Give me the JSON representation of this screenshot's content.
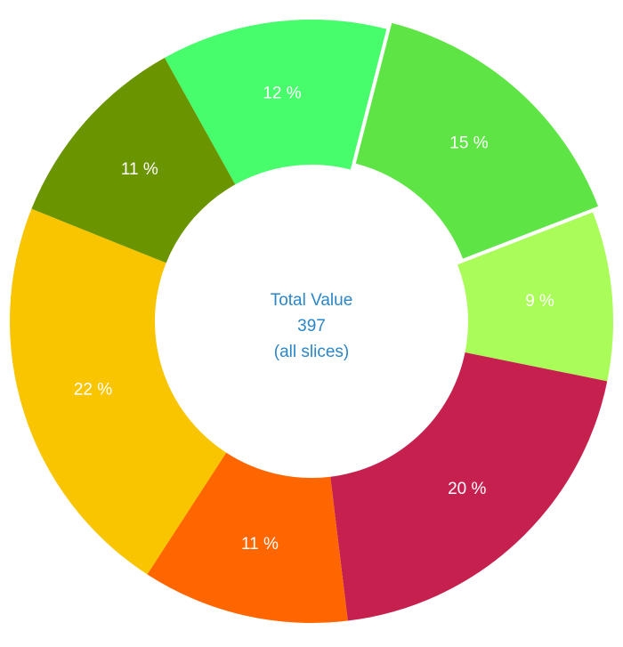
{
  "chart_data": {
    "type": "pie",
    "donut": true,
    "center_text": [
      "Total Value",
      "397",
      "(all slices)"
    ],
    "total": 397,
    "slices": [
      {
        "label": "15 %",
        "value": 60,
        "color": "#5ee444",
        "exploded": true
      },
      {
        "label": "9 %",
        "value": 36,
        "color": "#aafc58"
      },
      {
        "label": "20 %",
        "value": 79,
        "color": "#c6204e"
      },
      {
        "label": "11 %",
        "value": 44,
        "color": "#ff6600"
      },
      {
        "label": "22 %",
        "value": 87,
        "color": "#f8c500"
      },
      {
        "label": "11 %",
        "value": 43,
        "color": "#6b9500"
      },
      {
        "label": "12 %",
        "value": 48,
        "color": "#47fd6b"
      }
    ],
    "center_text_color": "#2a86c8"
  }
}
